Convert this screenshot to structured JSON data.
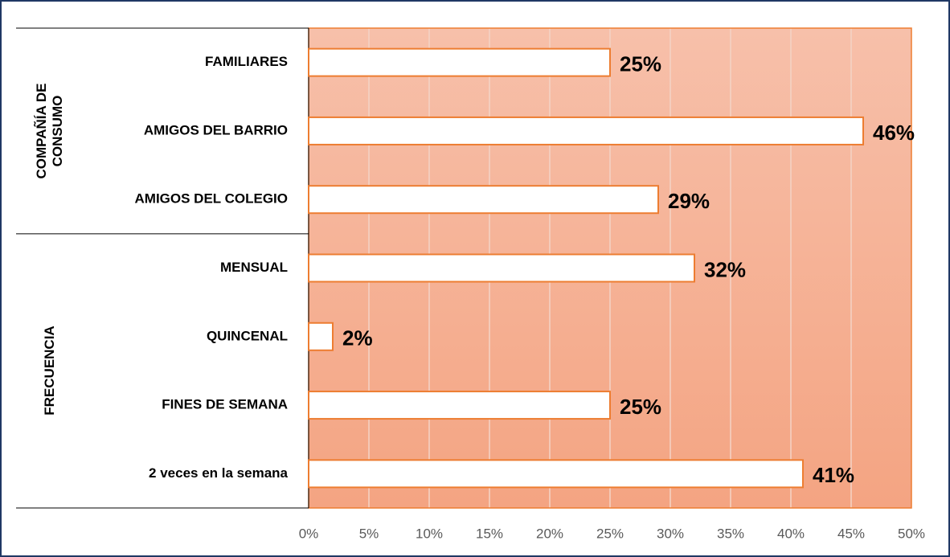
{
  "chart_data": {
    "type": "grouped-hbar",
    "groups": [
      {
        "name": "COMPAÑÍA DE CONSUMO",
        "categories": [
          "FAMILIARES",
          "AMIGOS DEL BARRIO",
          "AMIGOS DEL COLEGIO"
        ],
        "values": [
          25,
          46,
          29
        ],
        "value_labels": [
          "25%",
          "46%",
          "29%"
        ]
      },
      {
        "name": "FRECUENCIA",
        "categories": [
          "MENSUAL",
          "QUINCENAL",
          "FINES DE SEMANA",
          "2 veces en la semana"
        ],
        "values": [
          32,
          2,
          25,
          41
        ],
        "value_labels": [
          "32%",
          "2%",
          "25%",
          "41%"
        ]
      }
    ],
    "xlim": [
      0,
      50
    ],
    "xticks": [
      {
        "value": 0,
        "label": "0%"
      },
      {
        "value": 5,
        "label": "5%"
      },
      {
        "value": 10,
        "label": "10%"
      },
      {
        "value": 15,
        "label": "15%"
      },
      {
        "value": 20,
        "label": "20%"
      },
      {
        "value": 25,
        "label": "25%"
      },
      {
        "value": 30,
        "label": "30%"
      },
      {
        "value": 35,
        "label": "35%"
      },
      {
        "value": 40,
        "label": "40%"
      },
      {
        "value": 45,
        "label": "45%"
      },
      {
        "value": 50,
        "label": "50%"
      }
    ],
    "grid": true,
    "color": "#ed7d31",
    "bar_fill": "#ffffff"
  }
}
